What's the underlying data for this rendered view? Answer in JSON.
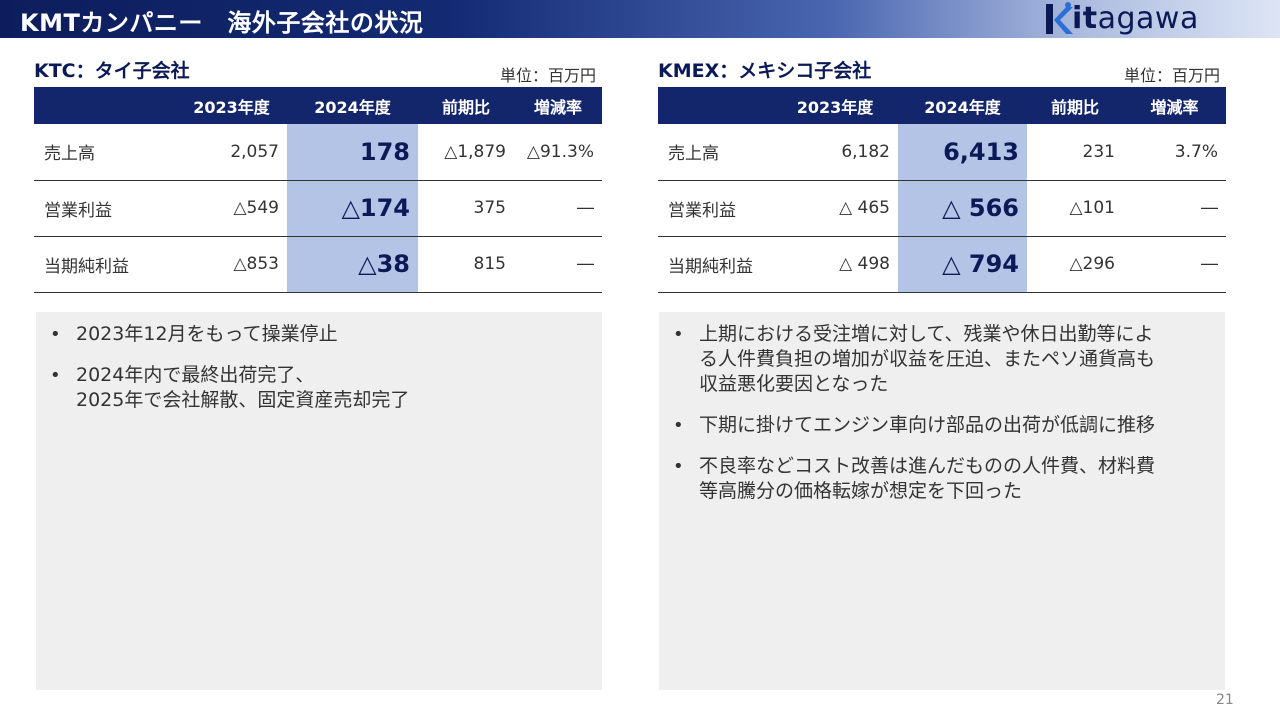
{
  "header": {
    "title": "KMTカンパニー　海外子会社の状況",
    "logo_text_a": "it",
    "logo_text_b": "agawa",
    "logo_brand": "Kitagawa",
    "logo_color": "#0b1a57"
  },
  "left": {
    "title": "KTC：タイ子会社",
    "unit": "単位：百万円",
    "columns": [
      "",
      "2023年度",
      "2024年度",
      "前期比",
      "増減率"
    ],
    "rows": [
      {
        "label": "売上高",
        "y2023": "2,057",
        "y2024": "178",
        "diff": "△1,879",
        "rate": "△91.3%"
      },
      {
        "label": "営業利益",
        "y2023": "△549",
        "y2024": "△174",
        "diff": "375",
        "rate": "―"
      },
      {
        "label": "当期純利益",
        "y2023": "△853",
        "y2024": "△38",
        "diff": "815",
        "rate": "―"
      }
    ],
    "notes": [
      {
        "lines": [
          "2023年12月をもって操業停止"
        ]
      },
      {
        "lines": [
          "2024年内で最終出荷完了、",
          "2025年で会社解散、固定資産売却完了"
        ]
      }
    ]
  },
  "right": {
    "title": "KMEX：メキシコ子会社",
    "unit": "単位：百万円",
    "columns": [
      "",
      "2023年度",
      "2024年度",
      "前期比",
      "増減率"
    ],
    "rows": [
      {
        "label": "売上高",
        "y2023": "6,182",
        "y2024": "6,413",
        "diff": "231",
        "rate": "3.7%"
      },
      {
        "label": "営業利益",
        "y2023": "△ 465",
        "y2024": "△ 566",
        "diff": "△101",
        "rate": "―"
      },
      {
        "label": "当期純利益",
        "y2023": "△ 498",
        "y2024": "△ 794",
        "diff": "△296",
        "rate": "―"
      }
    ],
    "notes": [
      {
        "lines": [
          "上期における受注増に対して、残業や休日出勤等によ",
          "る人件費負担の増加が収益を圧迫、またペソ通貨高も",
          "収益悪化要因となった"
        ]
      },
      {
        "lines": [
          "下期に掛けてエンジン車向け部品の出荷が低調に推移"
        ]
      },
      {
        "lines": [
          "不良率などコスト改善は進んだものの人件費、材料費",
          "等高騰分の価格転嫁が想定を下回った"
        ]
      }
    ]
  },
  "bullet_char": "•",
  "page_number": "21",
  "colors": {
    "header_dark": "#0d1d5c",
    "table_header": "#13266b",
    "highlight": "#b4c4e6",
    "notes_bg": "#efefef"
  }
}
